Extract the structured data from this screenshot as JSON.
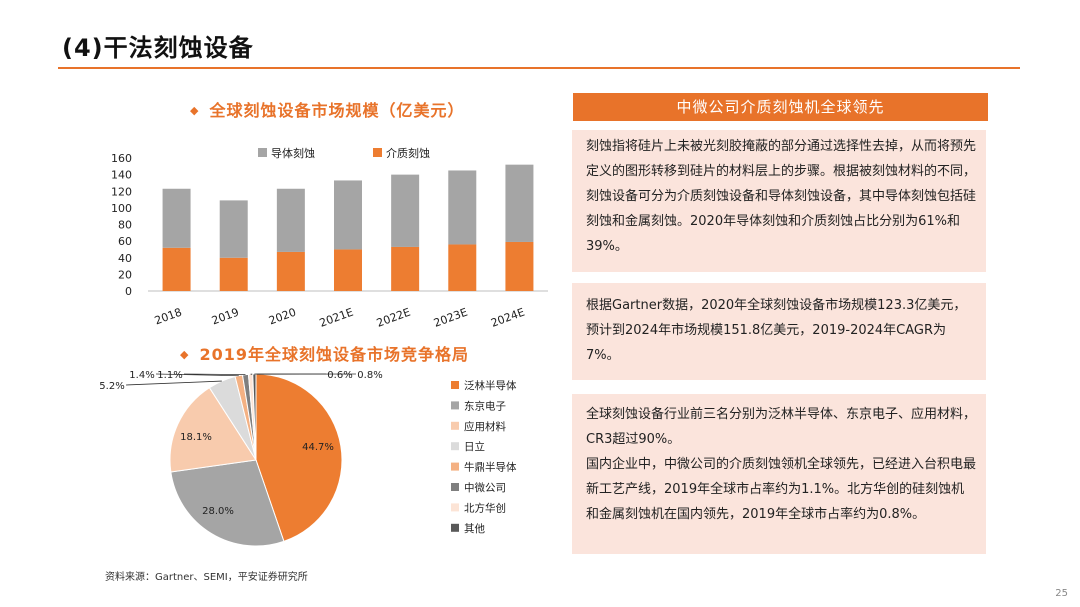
{
  "page": {
    "title": "(4)干法刻蚀设备",
    "source": "资料来源：Gartner、SEMI，平安证券研究所",
    "page_number": "25",
    "accent_color": "#e8732a",
    "box_color": "#fbe4dc"
  },
  "right_panel": {
    "header": "中微公司介质刻蚀机全球领先",
    "box1": "刻蚀指将硅片上未被光刻胶掩蔽的部分通过选择性去掉，从而将预先定义的图形转移到硅片的材料层上的步骤。根据被刻蚀材料的不同，刻蚀设备可分为介质刻蚀设备和导体刻蚀设备，其中导体刻蚀包括硅刻蚀和金属刻蚀。2020年导体刻蚀和介质刻蚀占比分别为61%和39%。",
    "box2": "根据Gartner数据，2020年全球刻蚀设备市场规模123.3亿美元，预计到2024年市场规模151.8亿美元，2019-2024年CAGR为7%。",
    "box3_p1": "全球刻蚀设备行业前三名分别为泛林半导体、东京电子、应用材料，CR3超过90%。",
    "box3_p2": "国内企业中，中微公司的介质刻蚀领机全球领先，已经进入台积电最新工艺产线，2019年全球市占率约为1.1%。北方华创的硅刻蚀机和金属刻蚀机在国内领先，2019年全球市占率约为0.8%。"
  },
  "chart_data": [
    {
      "type": "bar",
      "title": "全球刻蚀设备市场规模（亿美元）",
      "stacked": true,
      "categories": [
        "2018",
        "2019",
        "2020",
        "2021E",
        "2022E",
        "2023E",
        "2024E"
      ],
      "series": [
        {
          "name": "介质刻蚀",
          "color": "#ed7d31",
          "values": [
            52,
            40,
            47,
            50,
            53,
            56,
            59
          ]
        },
        {
          "name": "导体刻蚀",
          "color": "#a5a5a5",
          "values": [
            71,
            69,
            76,
            83,
            87,
            89,
            93
          ]
        }
      ],
      "ylim": [
        0,
        160
      ],
      "yticks": [
        "0",
        "20",
        "40",
        "60",
        "80",
        "100",
        "120",
        "140",
        "160"
      ],
      "legend_order": [
        "导体刻蚀",
        "介质刻蚀"
      ],
      "legend_position": "top",
      "grid": false
    },
    {
      "type": "pie",
      "title": "2019年全球刻蚀设备市场竞争格局",
      "legend_position": "right",
      "slices": [
        {
          "name": "泛林半导体",
          "value": 44.7,
          "label": "44.7%",
          "color": "#ed7d31"
        },
        {
          "name": "东京电子",
          "value": 28.0,
          "label": "28.0%",
          "color": "#a5a5a5"
        },
        {
          "name": "应用材料",
          "value": 18.1,
          "label": "18.1%",
          "color": "#f8cbad"
        },
        {
          "name": "日立",
          "value": 5.2,
          "label": "5.2%",
          "color": "#dbdbdb"
        },
        {
          "name": "牛鼎半导体",
          "value": 1.4,
          "label": "1.4%",
          "color": "#f4b183"
        },
        {
          "name": "中微公司",
          "value": 1.1,
          "label": "1.1%",
          "color": "#7f7f7f"
        },
        {
          "name": "北方华创",
          "value": 0.8,
          "label": "0.8%",
          "color": "#fce4d6"
        },
        {
          "name": "其他",
          "value": 0.6,
          "label": "0.6%",
          "color": "#595959"
        }
      ]
    }
  ]
}
